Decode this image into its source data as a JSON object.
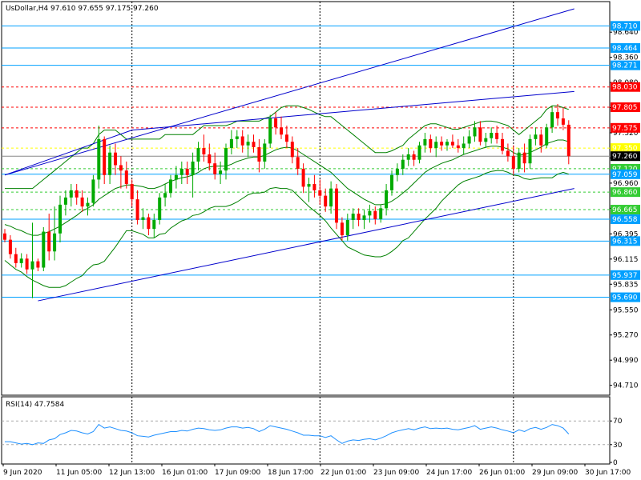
{
  "header": {
    "symbol": "UsDollar,H4",
    "ohlc": "97.610 97.655 97.175 97.260"
  },
  "rsi_header": "RSI(14) 47.7584",
  "colors": {
    "bull": "#00aa00",
    "bear": "#ff0000",
    "band": "#008000",
    "trend": "#0000cc",
    "hline_blue": "#00a0ff",
    "hline_red": "#ff0000",
    "hline_green": "#33cc33",
    "hline_yellow": "#ffff00",
    "rsi_line": "#1e90ff",
    "dotted_line": "#000000"
  },
  "chart_data": [
    {
      "type": "candlestick",
      "title": "UsDollar,H4",
      "ylim": [
        94.6,
        98.98
      ],
      "y_ticks": [
        "98.640",
        "98.360",
        "98.080",
        "97.800",
        "97.520",
        "97.240",
        "96.960",
        "96.680",
        "96.395",
        "96.115",
        "95.835",
        "95.550",
        "95.270",
        "94.990",
        "94.710"
      ],
      "x_tick_labels": [
        "9 Jun 2020",
        "11 Jun 05:00",
        "12 Jun 13:00",
        "16 Jun 01:00",
        "17 Jun 09:00",
        "18 Jun 17:00",
        "22 Jun 01:00",
        "23 Jun 09:00",
        "24 Jun 17:00",
        "26 Jun 01:00",
        "29 Jun 09:00",
        "30 Jun 17:00"
      ],
      "dotted_vertical_at_bars": [
        23,
        57,
        92
      ],
      "candles": [
        [
          96.4,
          96.45,
          96.3,
          96.33
        ],
        [
          96.33,
          96.38,
          96.12,
          96.17
        ],
        [
          96.17,
          96.24,
          96.02,
          96.07
        ],
        [
          96.07,
          96.18,
          96.02,
          96.12
        ],
        [
          96.12,
          96.17,
          95.95,
          96.0
        ],
        [
          96.0,
          96.52,
          95.68,
          96.09
        ],
        [
          96.09,
          96.12,
          95.98,
          96.02
        ],
        [
          96.02,
          96.47,
          95.98,
          96.42
        ],
        [
          96.42,
          96.62,
          96.1,
          96.2
        ],
        [
          96.2,
          96.7,
          96.1,
          96.4
        ],
        [
          96.4,
          96.82,
          96.3,
          96.72
        ],
        [
          96.72,
          96.88,
          96.6,
          96.8
        ],
        [
          96.8,
          96.95,
          96.7,
          96.88
        ],
        [
          96.88,
          96.95,
          96.72,
          96.8
        ],
        [
          96.8,
          96.88,
          96.64,
          96.7
        ],
        [
          96.7,
          96.8,
          96.6,
          96.74
        ],
        [
          96.74,
          97.05,
          96.7,
          97.0
        ],
        [
          97.0,
          97.6,
          96.9,
          97.45
        ],
        [
          97.45,
          97.48,
          96.95,
          97.05
        ],
        [
          97.05,
          97.38,
          96.95,
          97.3
        ],
        [
          97.3,
          97.4,
          97.05,
          97.16
        ],
        [
          97.16,
          97.26,
          96.9,
          97.1
        ],
        [
          97.1,
          97.2,
          96.9,
          96.95
        ],
        [
          96.95,
          97.0,
          96.7,
          96.78
        ],
        [
          96.78,
          96.88,
          96.5,
          96.55
        ],
        [
          96.55,
          96.68,
          96.45,
          96.58
        ],
        [
          96.58,
          96.62,
          96.38,
          96.45
        ],
        [
          96.45,
          96.62,
          96.35,
          96.55
        ],
        [
          96.55,
          96.85,
          96.5,
          96.8
        ],
        [
          96.8,
          96.95,
          96.7,
          96.85
        ],
        [
          96.85,
          97.05,
          96.8,
          97.0
        ],
        [
          97.0,
          97.15,
          96.9,
          97.05
        ],
        [
          97.05,
          97.2,
          96.95,
          97.12
        ],
        [
          97.12,
          97.2,
          96.95,
          97.05
        ],
        [
          97.05,
          97.3,
          96.8,
          97.2
        ],
        [
          97.2,
          97.42,
          97.1,
          97.35
        ],
        [
          97.35,
          97.5,
          97.2,
          97.28
        ],
        [
          97.28,
          97.4,
          97.1,
          97.18
        ],
        [
          97.18,
          97.3,
          97.0,
          97.06
        ],
        [
          97.06,
          97.2,
          96.95,
          97.1
        ],
        [
          97.1,
          97.4,
          97.0,
          97.35
        ],
        [
          97.35,
          97.55,
          97.28,
          97.45
        ],
        [
          97.45,
          97.55,
          97.35,
          97.48
        ],
        [
          97.48,
          97.55,
          97.3,
          97.38
        ],
        [
          97.38,
          97.5,
          97.25,
          97.42
        ],
        [
          97.42,
          97.5,
          97.3,
          97.36
        ],
        [
          97.36,
          97.45,
          97.08,
          97.2
        ],
        [
          97.2,
          97.45,
          97.12,
          97.4
        ],
        [
          97.4,
          97.72,
          97.35,
          97.68
        ],
        [
          97.68,
          97.75,
          97.5,
          97.58
        ],
        [
          97.58,
          97.7,
          97.45,
          97.5
        ],
        [
          97.5,
          97.6,
          97.35,
          97.42
        ],
        [
          97.42,
          97.48,
          97.18,
          97.25
        ],
        [
          97.25,
          97.35,
          97.05,
          97.12
        ],
        [
          97.12,
          97.18,
          96.85,
          96.92
        ],
        [
          96.92,
          97.02,
          96.75,
          96.95
        ],
        [
          96.95,
          97.05,
          96.8,
          96.88
        ],
        [
          96.88,
          97.0,
          96.72,
          96.82
        ],
        [
          96.82,
          96.9,
          96.64,
          96.7
        ],
        [
          96.7,
          96.98,
          96.62,
          96.9
        ],
        [
          96.9,
          96.95,
          96.45,
          96.52
        ],
        [
          96.52,
          96.58,
          96.32,
          96.38
        ],
        [
          96.38,
          96.62,
          96.32,
          96.55
        ],
        [
          96.55,
          96.68,
          96.45,
          96.62
        ],
        [
          96.62,
          96.68,
          96.48,
          96.55
        ],
        [
          96.55,
          96.66,
          96.45,
          96.6
        ],
        [
          96.6,
          96.72,
          96.52,
          96.65
        ],
        [
          96.65,
          96.7,
          96.5,
          96.56
        ],
        [
          96.56,
          96.72,
          96.52,
          96.68
        ],
        [
          96.68,
          96.95,
          96.6,
          96.88
        ],
        [
          96.88,
          97.1,
          96.82,
          97.05
        ],
        [
          97.05,
          97.18,
          96.98,
          97.12
        ],
        [
          97.12,
          97.28,
          97.05,
          97.22
        ],
        [
          97.22,
          97.35,
          97.15,
          97.28
        ],
        [
          97.28,
          97.32,
          97.15,
          97.22
        ],
        [
          97.22,
          97.42,
          97.18,
          97.38
        ],
        [
          97.38,
          97.52,
          97.3,
          97.45
        ],
        [
          97.45,
          97.5,
          97.3,
          97.35
        ],
        [
          97.35,
          97.48,
          97.25,
          97.42
        ],
        [
          97.42,
          97.48,
          97.32,
          97.38
        ],
        [
          97.38,
          97.45,
          97.32,
          97.42
        ],
        [
          97.42,
          97.5,
          97.35,
          97.38
        ],
        [
          97.38,
          97.45,
          97.3,
          97.35
        ],
        [
          97.35,
          97.48,
          97.28,
          97.4
        ],
        [
          97.4,
          97.55,
          97.35,
          97.48
        ],
        [
          97.48,
          97.65,
          97.42,
          97.58
        ],
        [
          97.58,
          97.65,
          97.38,
          97.42
        ],
        [
          97.42,
          97.52,
          97.35,
          97.46
        ],
        [
          97.46,
          97.58,
          97.4,
          97.52
        ],
        [
          97.52,
          97.6,
          97.4,
          97.45
        ],
        [
          97.45,
          97.52,
          97.28,
          97.32
        ],
        [
          97.32,
          97.4,
          97.2,
          97.26
        ],
        [
          97.26,
          97.38,
          97.05,
          97.12
        ],
        [
          97.12,
          97.35,
          97.08,
          97.3
        ],
        [
          97.3,
          97.4,
          97.08,
          97.18
        ],
        [
          97.18,
          97.5,
          97.12,
          97.45
        ],
        [
          97.45,
          97.58,
          97.38,
          97.5
        ],
        [
          97.5,
          97.56,
          97.3,
          97.38
        ],
        [
          97.38,
          97.62,
          97.35,
          97.58
        ],
        [
          97.58,
          97.82,
          97.52,
          97.75
        ],
        [
          97.75,
          97.84,
          97.6,
          97.68
        ],
        [
          97.68,
          97.8,
          97.55,
          97.61
        ],
        [
          97.61,
          97.66,
          97.17,
          97.26
        ]
      ],
      "bollinger": {
        "upper": [
          96.9,
          96.9,
          96.9,
          96.9,
          96.9,
          96.9,
          96.95,
          97.0,
          97.05,
          97.1,
          97.15,
          97.2,
          97.25,
          97.3,
          97.35,
          97.35,
          97.4,
          97.5,
          97.55,
          97.55,
          97.55,
          97.5,
          97.45,
          97.45,
          97.45,
          97.45,
          97.45,
          97.45,
          97.45,
          97.5,
          97.5,
          97.5,
          97.5,
          97.5,
          97.5,
          97.55,
          97.6,
          97.6,
          97.6,
          97.6,
          97.6,
          97.62,
          97.65,
          97.65,
          97.65,
          97.65,
          97.65,
          97.68,
          97.7,
          97.75,
          97.8,
          97.82,
          97.82,
          97.82,
          97.8,
          97.78,
          97.75,
          97.72,
          97.7,
          97.7,
          97.65,
          97.6,
          97.55,
          97.5,
          97.45,
          97.4,
          97.35,
          97.3,
          97.3,
          97.3,
          97.32,
          97.35,
          97.38,
          97.45,
          97.5,
          97.55,
          97.6,
          97.62,
          97.62,
          97.6,
          97.58,
          97.56,
          97.56,
          97.58,
          97.6,
          97.62,
          97.64,
          97.65,
          97.65,
          97.64,
          97.62,
          97.6,
          97.55,
          97.5,
          97.55,
          97.6,
          97.65,
          97.7,
          97.78,
          97.82,
          97.82,
          97.8,
          97.78
        ],
        "middle": [
          96.5,
          96.48,
          96.45,
          96.43,
          96.4,
          96.38,
          96.38,
          96.4,
          96.42,
          96.45,
          96.48,
          96.52,
          96.56,
          96.6,
          96.65,
          96.68,
          96.72,
          96.78,
          96.82,
          96.86,
          96.9,
          96.92,
          96.94,
          96.94,
          96.93,
          96.92,
          96.9,
          96.9,
          96.92,
          96.95,
          96.98,
          97.0,
          97.02,
          97.03,
          97.05,
          97.08,
          97.12,
          97.14,
          97.15,
          97.15,
          97.15,
          97.17,
          97.2,
          97.22,
          97.24,
          97.25,
          97.25,
          97.27,
          97.3,
          97.33,
          97.35,
          97.36,
          97.35,
          97.32,
          97.28,
          97.24,
          97.2,
          97.16,
          97.12,
          97.08,
          97.02,
          96.96,
          96.9,
          96.86,
          96.82,
          96.78,
          96.75,
          96.72,
          96.72,
          96.73,
          96.76,
          96.8,
          96.85,
          96.9,
          96.96,
          97.02,
          97.08,
          97.12,
          97.15,
          97.18,
          97.2,
          97.22,
          97.25,
          97.28,
          97.3,
          97.32,
          97.34,
          97.36,
          97.37,
          97.37,
          97.36,
          97.34,
          97.3,
          97.27,
          97.28,
          97.3,
          97.33,
          97.36,
          97.4,
          97.42,
          97.44,
          97.44,
          97.42
        ],
        "lower": [
          96.1,
          96.05,
          96.0,
          95.97,
          95.92,
          95.88,
          95.85,
          95.82,
          95.8,
          95.8,
          95.8,
          95.82,
          95.86,
          95.9,
          95.93,
          96.0,
          96.05,
          96.06,
          96.09,
          96.17,
          96.25,
          96.34,
          96.43,
          96.43,
          96.41,
          96.39,
          96.35,
          96.35,
          96.39,
          96.4,
          96.46,
          96.5,
          96.54,
          96.56,
          96.6,
          96.61,
          96.64,
          96.68,
          96.7,
          96.7,
          96.7,
          96.72,
          96.75,
          96.79,
          96.83,
          96.85,
          96.85,
          96.86,
          96.9,
          96.91,
          96.9,
          96.9,
          96.88,
          96.82,
          96.76,
          96.7,
          96.65,
          96.6,
          96.54,
          96.46,
          96.39,
          96.32,
          96.25,
          96.22,
          96.19,
          96.16,
          96.15,
          96.14,
          96.14,
          96.16,
          96.2,
          96.25,
          96.32,
          96.35,
          96.42,
          96.49,
          96.56,
          96.62,
          96.68,
          96.76,
          96.82,
          96.88,
          96.94,
          96.98,
          97.0,
          97.02,
          97.04,
          97.07,
          97.09,
          97.1,
          97.1,
          97.08,
          97.05,
          97.04,
          97.01,
          97.0,
          97.01,
          97.02,
          97.02,
          97.02,
          97.06,
          97.08,
          97.06
        ]
      },
      "trendlines": [
        {
          "from": [
            0,
            97.05
          ],
          "to": [
            103,
            98.9
          ]
        },
        {
          "from": [
            23,
            97.55
          ],
          "to": [
            103,
            97.98
          ]
        },
        {
          "from": [
            6,
            95.65
          ],
          "to": [
            103,
            96.9
          ]
        },
        {
          "from": [
            0,
            97.05
          ],
          "to": [
            23,
            97.55
          ]
        }
      ],
      "horizontal_levels": [
        {
          "value": 98.71,
          "label": "98.710",
          "style": "blue",
          "label_bg": "#00a0ff"
        },
        {
          "value": 98.464,
          "label": "98.464",
          "style": "blue",
          "label_bg": "#00a0ff"
        },
        {
          "value": 98.271,
          "label": "98.271",
          "style": "blue",
          "label_bg": "#00a0ff"
        },
        {
          "value": 98.03,
          "label": "98.030",
          "style": "red",
          "label_bg": "#ff0000"
        },
        {
          "value": 97.805,
          "label": "97.805",
          "style": "red",
          "label_bg": "#ff0000"
        },
        {
          "value": 97.575,
          "label": "97.575",
          "style": "red",
          "label_bg": "#ff0000"
        },
        {
          "value": 97.35,
          "label": "97.350",
          "style": "yellow",
          "label_bg": "#ffff00"
        },
        {
          "value": 97.26,
          "label": "97.260",
          "style": "current",
          "label_bg": "#000000"
        },
        {
          "value": 97.12,
          "label": "97.120",
          "style": "green",
          "label_bg": "#33cc33"
        },
        {
          "value": 97.059,
          "label": "97.059",
          "style": "blue",
          "label_bg": "#00a0ff"
        },
        {
          "value": 96.86,
          "label": "96.860",
          "style": "green",
          "label_bg": "#33cc33"
        },
        {
          "value": 96.665,
          "label": "96.665",
          "style": "green",
          "label_bg": "#33cc33"
        },
        {
          "value": 96.558,
          "label": "96.558",
          "style": "blue",
          "label_bg": "#00a0ff"
        },
        {
          "value": 96.315,
          "label": "96.315",
          "style": "blue",
          "label_bg": "#00a0ff"
        },
        {
          "value": 95.937,
          "label": "95.937",
          "style": "blue",
          "label_bg": "#00a0ff"
        },
        {
          "value": 95.69,
          "label": "95.690",
          "style": "blue",
          "label_bg": "#00a0ff"
        }
      ]
    },
    {
      "type": "line",
      "title": "RSI(14) 47.7584",
      "ylim": [
        0,
        100
      ],
      "y_ticks": [
        "70",
        "30",
        "0"
      ],
      "levels": [
        70,
        30
      ],
      "values": [
        35,
        35,
        33,
        31,
        32,
        30,
        33,
        32,
        38,
        40,
        47,
        50,
        54,
        53,
        50,
        48,
        52,
        64,
        58,
        60,
        57,
        54,
        53,
        50,
        45,
        44,
        43,
        46,
        48,
        50,
        52,
        52,
        54,
        53,
        56,
        58,
        57,
        55,
        54,
        55,
        58,
        60,
        60,
        58,
        59,
        57,
        52,
        56,
        62,
        60,
        58,
        56,
        53,
        50,
        46,
        46,
        45,
        45,
        42,
        45,
        38,
        32,
        36,
        38,
        37,
        39,
        40,
        38,
        41,
        45,
        50,
        53,
        55,
        57,
        55,
        58,
        60,
        57,
        58,
        57,
        58,
        56,
        55,
        57,
        59,
        62,
        56,
        58,
        60,
        58,
        55,
        53,
        50,
        55,
        52,
        57,
        59,
        56,
        59,
        64,
        62,
        58,
        48
      ]
    }
  ]
}
